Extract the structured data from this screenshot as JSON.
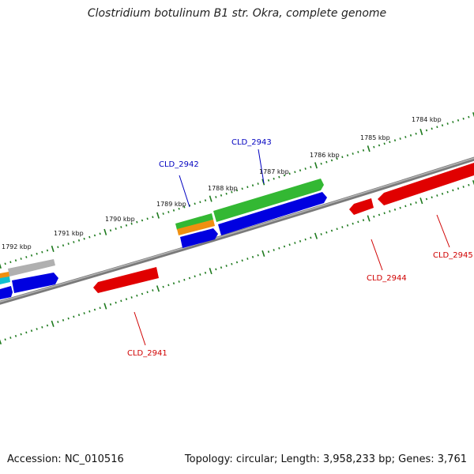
{
  "title": "Clostridium botulinum B1 str. Okra, complete genome",
  "footer": {
    "accession": "Accession: NC_010516",
    "summary": "Topology: circular; Length: 3,958,233 bp; Genes: 3,761"
  },
  "colors": {
    "backbone": "#808080",
    "tick": "#1e7a1e",
    "blue": "#0000e0",
    "red": "#e00000",
    "green": "#33b833",
    "orange": "#f09010",
    "gray": "#b0b0b0",
    "cyan": "#10c0d0",
    "label_blue": "#0000c0",
    "label_red": "#d00000"
  },
  "kbp_labels": [
    {
      "text": "1784 kbp"
    },
    {
      "text": "1785 kbp"
    },
    {
      "text": "1786 kbp"
    },
    {
      "text": "1787 kbp"
    },
    {
      "text": "1788 kbp"
    },
    {
      "text": "1789 kbp"
    },
    {
      "text": "1790 kbp"
    },
    {
      "text": "1791 kbp"
    },
    {
      "text": "1792 kbp"
    }
  ],
  "gene_labels": [
    {
      "text": "CLD_2942",
      "color": "blue"
    },
    {
      "text": "CLD_2943",
      "color": "blue"
    },
    {
      "text": "CLD_2941",
      "color": "red"
    },
    {
      "text": "CLD_2944",
      "color": "red"
    },
    {
      "text": "CLD_2945",
      "color": "red"
    }
  ]
}
